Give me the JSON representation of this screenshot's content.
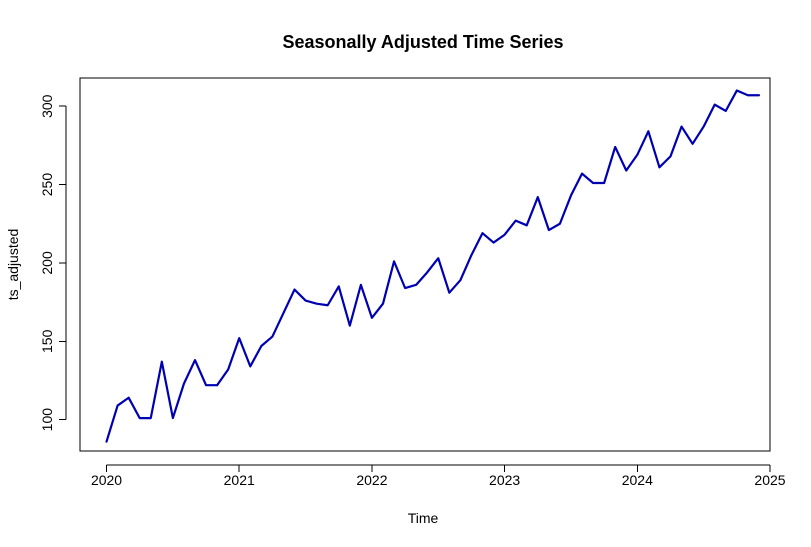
{
  "chart_data": {
    "type": "line",
    "title": "Seasonally Adjusted Time Series",
    "xlabel": "Time",
    "ylabel": "ts_adjusted",
    "xlim": [
      2019.8,
      2025.0
    ],
    "ylim": [
      80,
      318
    ],
    "x_ticks": [
      2020,
      2021,
      2022,
      2023,
      2024,
      2025
    ],
    "y_ticks": [
      100,
      150,
      200,
      250,
      300
    ],
    "x_tick_labels": [
      "2020",
      "2021",
      "2022",
      "2023",
      "2024",
      "2025"
    ],
    "y_tick_labels": [
      "100",
      "150",
      "200",
      "250",
      "300"
    ],
    "grid": false,
    "legend": "none",
    "start": 2020,
    "frequency": 12,
    "series": [
      {
        "color": "#0000b3",
        "values": [
          86,
          109,
          114,
          101,
          101,
          137,
          101,
          123,
          138,
          122,
          122,
          132,
          152,
          134,
          147,
          153,
          168,
          183,
          176,
          174,
          173,
          185,
          160,
          186,
          165,
          174,
          201,
          184,
          186,
          194,
          203,
          181,
          189,
          205,
          219,
          213,
          218,
          227,
          224,
          242,
          221,
          225,
          243,
          257,
          251,
          251,
          274,
          259,
          269,
          284,
          261,
          268,
          287,
          276,
          287,
          301,
          297,
          310,
          307,
          307
        ]
      }
    ]
  }
}
